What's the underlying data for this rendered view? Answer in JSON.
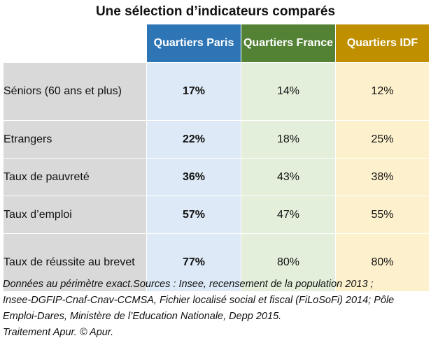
{
  "title": "Une sélection d’indicateurs comparés",
  "columns": {
    "paris": "Quartiers Paris",
    "france": "Quartiers France",
    "idf": "Quartiers IDF"
  },
  "colors": {
    "paris_header": "#2e75b6",
    "france_header": "#548235",
    "idf_header": "#bf8f00",
    "label_bg": "#d9d9d9",
    "paris_cell": "#dde9f6",
    "france_cell": "#e3efdb",
    "idf_cell": "#fdf1cd"
  },
  "rows": [
    {
      "label": "Séniors (60 ans et plus)",
      "paris": "17%",
      "france": "14%",
      "idf": "12%"
    },
    {
      "label": "Etrangers",
      "paris": "22%",
      "france": "18%",
      "idf": "25%"
    },
    {
      "label": "Taux de pauvreté",
      "paris": "36%",
      "france": "43%",
      "idf": "38%"
    },
    {
      "label": "Taux d’emploi",
      "paris": "57%",
      "france": "47%",
      "idf": "55%"
    },
    {
      "label": "Taux de réussite au brevet",
      "paris": "77%",
      "france": "80%",
      "idf": "80%"
    }
  ],
  "notes": {
    "line1": "Données au périmètre exact.Sources : Insee, recensement de la population 2013 ;",
    "line2": "Insee-DGFIP-Cnaf-Cnav-CCMSA, Fichier localisé social et fiscal (FiLoSoFi) 2014; Pôle",
    "line3": "Emploi-Dares, Ministère de l’Education Nationale, Depp 2015.",
    "line4": "Traitement Apur. © Apur."
  }
}
